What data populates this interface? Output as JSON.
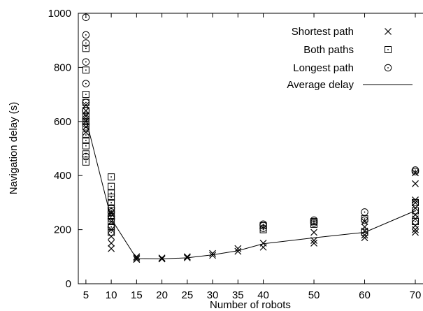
{
  "chart_data": {
    "type": "scatter",
    "xlabel": "Number of robots",
    "ylabel": "Navigation delay (s)",
    "ylim": [
      0,
      1000
    ],
    "xlim": [
      3.5,
      70
    ],
    "x_ticks": [
      5,
      10,
      15,
      20,
      25,
      30,
      35,
      40,
      50,
      60,
      70
    ],
    "y_ticks": [
      0,
      200,
      400,
      600,
      800,
      1000
    ],
    "grid": false,
    "legend_position": "top-right",
    "series": [
      {
        "name": "Shortest path",
        "marker": "cross",
        "points": [
          [
            5,
            560
          ],
          [
            5,
            580
          ],
          [
            5,
            600
          ],
          [
            5,
            620
          ],
          [
            5,
            640
          ],
          [
            5,
            660
          ],
          [
            10,
            130
          ],
          [
            10,
            150
          ],
          [
            10,
            175
          ],
          [
            10,
            200
          ],
          [
            10,
            230
          ],
          [
            10,
            260
          ],
          [
            15,
            90
          ],
          [
            15,
            95
          ],
          [
            15,
            100
          ],
          [
            20,
            92
          ],
          [
            20,
            95
          ],
          [
            25,
            96
          ],
          [
            25,
            100
          ],
          [
            30,
            105
          ],
          [
            30,
            112
          ],
          [
            35,
            120
          ],
          [
            35,
            130
          ],
          [
            40,
            135
          ],
          [
            40,
            150
          ],
          [
            50,
            150
          ],
          [
            50,
            160
          ],
          [
            50,
            190
          ],
          [
            60,
            170
          ],
          [
            60,
            180
          ],
          [
            60,
            195
          ],
          [
            60,
            210
          ],
          [
            60,
            230
          ],
          [
            70,
            190
          ],
          [
            70,
            200
          ],
          [
            70,
            215
          ],
          [
            70,
            240
          ],
          [
            70,
            255
          ],
          [
            70,
            280
          ],
          [
            70,
            300
          ],
          [
            70,
            310
          ],
          [
            70,
            370
          ],
          [
            70,
            410
          ]
        ]
      },
      {
        "name": "Both paths",
        "marker": "square",
        "points": [
          [
            5,
            450
          ],
          [
            5,
            480
          ],
          [
            5,
            510
          ],
          [
            5,
            530
          ],
          [
            5,
            550
          ],
          [
            5,
            580
          ],
          [
            5,
            600
          ],
          [
            5,
            620
          ],
          [
            5,
            640
          ],
          [
            5,
            670
          ],
          [
            5,
            700
          ],
          [
            5,
            790
          ],
          [
            5,
            870
          ],
          [
            10,
            190
          ],
          [
            10,
            210
          ],
          [
            10,
            230
          ],
          [
            10,
            250
          ],
          [
            10,
            270
          ],
          [
            10,
            280
          ],
          [
            10,
            300
          ],
          [
            10,
            320
          ],
          [
            10,
            335
          ],
          [
            10,
            360
          ],
          [
            10,
            395
          ],
          [
            40,
            200
          ],
          [
            40,
            215
          ],
          [
            50,
            220
          ],
          [
            50,
            230
          ],
          [
            60,
            190
          ],
          [
            60,
            240
          ],
          [
            70,
            230
          ],
          [
            70,
            270
          ],
          [
            70,
            300
          ]
        ]
      },
      {
        "name": "Longest path",
        "marker": "circle",
        "points": [
          [
            5,
            470
          ],
          [
            5,
            590
          ],
          [
            5,
            610
          ],
          [
            5,
            640
          ],
          [
            5,
            670
          ],
          [
            5,
            740
          ],
          [
            5,
            820
          ],
          [
            5,
            890
          ],
          [
            5,
            920
          ],
          [
            5,
            985
          ],
          [
            10,
            210
          ],
          [
            10,
            240
          ],
          [
            10,
            250
          ],
          [
            10,
            265
          ],
          [
            10,
            280
          ],
          [
            40,
            205
          ],
          [
            40,
            215
          ],
          [
            40,
            220
          ],
          [
            50,
            225
          ],
          [
            50,
            230
          ],
          [
            50,
            235
          ],
          [
            60,
            235
          ],
          [
            60,
            265
          ],
          [
            70,
            415
          ],
          [
            70,
            420
          ]
        ]
      },
      {
        "name": "Average delay",
        "marker": "line",
        "points": [
          [
            5,
            610
          ],
          [
            10,
            240
          ],
          [
            15,
            93
          ],
          [
            20,
            92
          ],
          [
            25,
            96
          ],
          [
            30,
            107
          ],
          [
            35,
            122
          ],
          [
            40,
            148
          ],
          [
            50,
            170
          ],
          [
            60,
            190
          ],
          [
            70,
            270
          ]
        ]
      }
    ]
  }
}
